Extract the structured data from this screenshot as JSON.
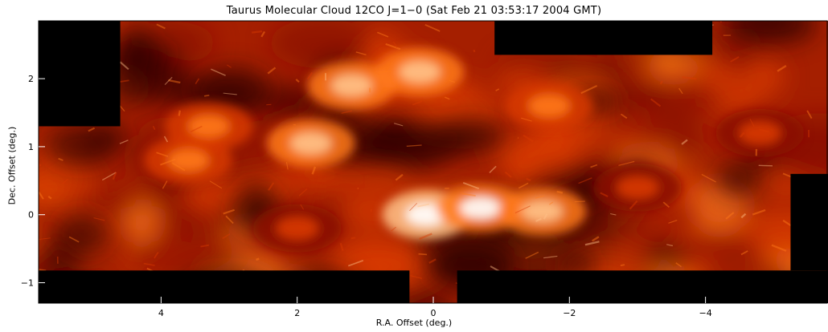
{
  "chart_data": {
    "type": "heatmap",
    "title": "Taurus Molecular Cloud   12CO J=1−0 (Sat Feb 21 03:53:17 2004 GMT)",
    "xlabel": "R.A. Offset (deg.)",
    "ylabel": "Dec. Offset (deg.)",
    "xlim": [
      5.8,
      -5.8
    ],
    "ylim": [
      -1.3,
      2.85
    ],
    "x_ticks": [
      4,
      2,
      0,
      -2,
      -4
    ],
    "x_tick_labels": [
      "4",
      "2",
      "0",
      "−2",
      "−4"
    ],
    "y_ticks": [
      2,
      1,
      0,
      -1
    ],
    "y_tick_labels": [
      "2",
      "1",
      "0",
      "−1"
    ],
    "colormap": [
      "#000000",
      "#3a0000",
      "#8a0f00",
      "#d83a00",
      "#ff7a1a",
      "#ffc28a",
      "#ffffff"
    ],
    "no_data_regions": [
      {
        "x": [
          -0.9,
          -4.1
        ],
        "y": [
          2.35,
          2.85
        ]
      },
      {
        "x": [
          5.8,
          0.35
        ],
        "y": [
          -1.3,
          -0.82
        ]
      },
      {
        "x": [
          -0.35,
          -5.8
        ],
        "y": [
          -1.3,
          -0.82
        ]
      },
      {
        "x": [
          5.8,
          4.6
        ],
        "y": [
          1.3,
          2.85
        ]
      },
      {
        "x": [
          -5.25,
          -5.8
        ],
        "y": [
          -0.82,
          0.6
        ]
      }
    ],
    "emission_peaks": [
      {
        "x": 0.1,
        "y": 0.0,
        "level": 1.0
      },
      {
        "x": -0.7,
        "y": 0.1,
        "level": 0.95
      },
      {
        "x": -1.6,
        "y": 0.05,
        "level": 0.85
      },
      {
        "x": 1.8,
        "y": 1.05,
        "level": 0.85
      },
      {
        "x": 1.2,
        "y": 1.9,
        "level": 0.8
      },
      {
        "x": 0.2,
        "y": 2.1,
        "level": 0.85
      },
      {
        "x": -1.7,
        "y": 1.6,
        "level": 0.7
      },
      {
        "x": 3.6,
        "y": 0.8,
        "level": 0.7
      },
      {
        "x": 3.3,
        "y": 1.3,
        "level": 0.6
      },
      {
        "x": -4.8,
        "y": 1.2,
        "level": 0.55
      },
      {
        "x": -3.0,
        "y": 0.4,
        "level": 0.5
      },
      {
        "x": 2.0,
        "y": -0.2,
        "level": 0.45
      }
    ]
  }
}
